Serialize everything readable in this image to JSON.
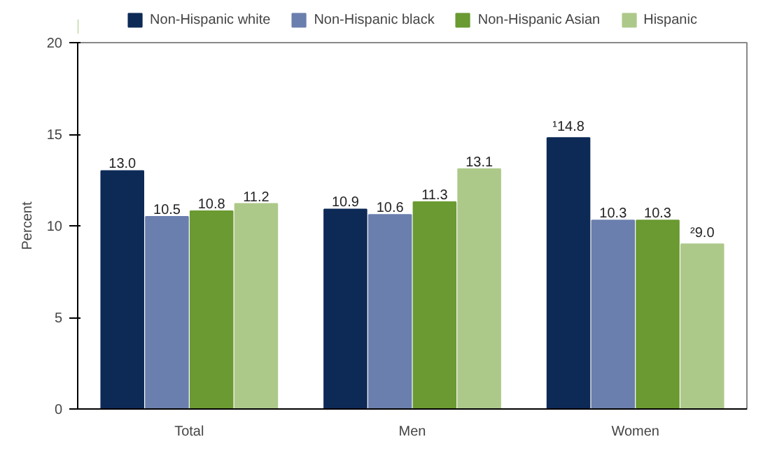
{
  "chart_data": {
    "type": "bar",
    "ylabel": "Percent",
    "categories": [
      "Total",
      "Men",
      "Women"
    ],
    "series": [
      {
        "name": "Non-Hispanic white",
        "color": "#0d2a57",
        "values": [
          13.0,
          10.9,
          14.8
        ],
        "value_labels": [
          "13.0",
          "10.9",
          "¹14.8"
        ]
      },
      {
        "name": "Non-Hispanic black",
        "color": "#6b7fae",
        "values": [
          10.5,
          10.6,
          10.3
        ],
        "value_labels": [
          "10.5",
          "10.6",
          "10.3"
        ]
      },
      {
        "name": "Non-Hispanic Asian",
        "color": "#6a9a31",
        "values": [
          10.8,
          11.3,
          10.3
        ],
        "value_labels": [
          "10.8",
          "11.3",
          "10.3"
        ]
      },
      {
        "name": "Hispanic",
        "color": "#adc98a",
        "values": [
          11.2,
          13.1,
          9.0
        ],
        "value_labels": [
          "11.2",
          "13.1",
          "²9.0"
        ]
      }
    ],
    "ylim": [
      0,
      20
    ],
    "yticks": [
      0,
      5,
      10,
      15,
      20
    ],
    "grid": false,
    "legend": "top"
  }
}
